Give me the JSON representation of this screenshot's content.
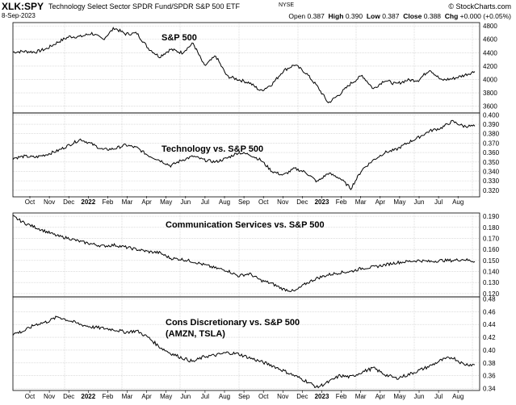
{
  "header": {
    "symbol": "XLK:SPY",
    "name": "Technology Select Sector SPDR Fund/SPDR S&P 500 ETF",
    "exchange": "NYSE",
    "date": "8-Sep-2023",
    "brand": "© StockCharts.com",
    "quote": {
      "open_label": "Open",
      "open": "0.387",
      "high_label": "High",
      "high": "0.390",
      "low_label": "Low",
      "low": "0.387",
      "close_label": "Close",
      "close": "0.388",
      "chg_label": "Chg",
      "chg": "+0.000 (+0.05%)"
    }
  },
  "colors": {
    "line": "#000000",
    "grid": "#c8c8c8",
    "frame": "#000000"
  },
  "chart_data": [
    {
      "type": "line",
      "title": "S&P 500",
      "ylim": [
        3500,
        4850
      ],
      "yticks": [
        3600,
        3800,
        4000,
        4200,
        4400,
        4600,
        4800
      ],
      "ytick_labels": [
        "3600",
        "3800",
        "4000",
        "4200",
        "4400",
        "4600",
        "4800"
      ],
      "x": [
        0,
        3,
        6,
        9,
        12,
        15,
        18,
        21,
        24,
        27,
        30,
        33,
        36,
        39,
        42,
        45,
        48,
        51,
        54,
        57,
        60,
        63,
        66,
        69,
        72,
        75,
        78,
        81,
        84,
        87,
        90,
        93,
        96,
        99,
        102,
        105,
        108,
        111,
        114,
        117,
        120,
        123
      ],
      "series": [
        {
          "values": [
            4410,
            4420,
            4410,
            4460,
            4560,
            4640,
            4640,
            4690,
            4600,
            4770,
            4680,
            4690,
            4470,
            4340,
            4450,
            4400,
            4540,
            4200,
            4350,
            4050,
            4000,
            3950,
            3830,
            3930,
            4130,
            4220,
            4100,
            3900,
            3650,
            3780,
            3940,
            4060,
            3860,
            3990,
            3930,
            3990,
            3990,
            4150,
            3990,
            4010,
            4060,
            4120
          ]
        }
      ]
    },
    {
      "type": "line",
      "title": "Technology vs. S&P 500",
      "ylim": [
        0.313,
        0.402
      ],
      "yticks": [
        0.32,
        0.33,
        0.34,
        0.35,
        0.36,
        0.37,
        0.38,
        0.39,
        0.4
      ],
      "ytick_labels": [
        "0.320",
        "0.330",
        "0.340",
        "0.350",
        "0.360",
        "0.370",
        "0.380",
        "0.390",
        "0.400"
      ],
      "series": [
        {
          "values": [
            0.354,
            0.356,
            0.355,
            0.358,
            0.362,
            0.368,
            0.374,
            0.369,
            0.363,
            0.364,
            0.368,
            0.365,
            0.357,
            0.352,
            0.346,
            0.352,
            0.356,
            0.352,
            0.35,
            0.354,
            0.36,
            0.358,
            0.352,
            0.34,
            0.336,
            0.343,
            0.339,
            0.329,
            0.338,
            0.333,
            0.322,
            0.342,
            0.352,
            0.36,
            0.363,
            0.37,
            0.376,
            0.383,
            0.386,
            0.393,
            0.388,
            0.388
          ]
        }
      ]
    },
    {
      "type": "line",
      "title": "Communication Services vs. S&P 500",
      "ylim": [
        0.117,
        0.193
      ],
      "yticks": [
        0.12,
        0.13,
        0.14,
        0.15,
        0.16,
        0.17,
        0.18,
        0.19
      ],
      "ytick_labels": [
        "0.120",
        "0.130",
        "0.140",
        "0.150",
        "0.160",
        "0.170",
        "0.180",
        "0.190"
      ],
      "series": [
        {
          "values": [
            0.19,
            0.184,
            0.18,
            0.176,
            0.172,
            0.17,
            0.167,
            0.165,
            0.163,
            0.164,
            0.162,
            0.16,
            0.158,
            0.157,
            0.152,
            0.151,
            0.149,
            0.146,
            0.143,
            0.141,
            0.136,
            0.138,
            0.132,
            0.129,
            0.124,
            0.122,
            0.129,
            0.134,
            0.137,
            0.139,
            0.14,
            0.143,
            0.144,
            0.146,
            0.148,
            0.149,
            0.15,
            0.149,
            0.15,
            0.15,
            0.151,
            0.149
          ]
        }
      ]
    },
    {
      "type": "line",
      "title": "Cons Discretionary vs. S&P 500",
      "subtitle": "(AMZN, TSLA)",
      "ylim": [
        0.337,
        0.483
      ],
      "yticks": [
        0.34,
        0.36,
        0.38,
        0.4,
        0.42,
        0.44,
        0.46,
        0.48
      ],
      "ytick_labels": [
        "0.34",
        "0.36",
        "0.38",
        "0.40",
        "0.42",
        "0.44",
        "0.46",
        "0.48"
      ],
      "x_labels": [
        "Oct",
        "Nov",
        "Dec",
        "2022",
        "Feb",
        "Mar",
        "Apr",
        "May",
        "Jun",
        "Jul",
        "Aug",
        "Sep",
        "Oct",
        "Nov",
        "Dec",
        "2023",
        "Feb",
        "Mar",
        "Apr",
        "May",
        "Jun",
        "Jul",
        "Aug",
        "Sep"
      ],
      "series": [
        {
          "values": [
            0.425,
            0.43,
            0.44,
            0.444,
            0.452,
            0.446,
            0.44,
            0.436,
            0.434,
            0.432,
            0.428,
            0.43,
            0.42,
            0.405,
            0.395,
            0.388,
            0.382,
            0.39,
            0.392,
            0.396,
            0.394,
            0.388,
            0.382,
            0.376,
            0.368,
            0.36,
            0.352,
            0.342,
            0.35,
            0.36,
            0.358,
            0.366,
            0.372,
            0.362,
            0.356,
            0.361,
            0.368,
            0.375,
            0.384,
            0.389,
            0.378,
            0.377
          ]
        }
      ]
    }
  ]
}
